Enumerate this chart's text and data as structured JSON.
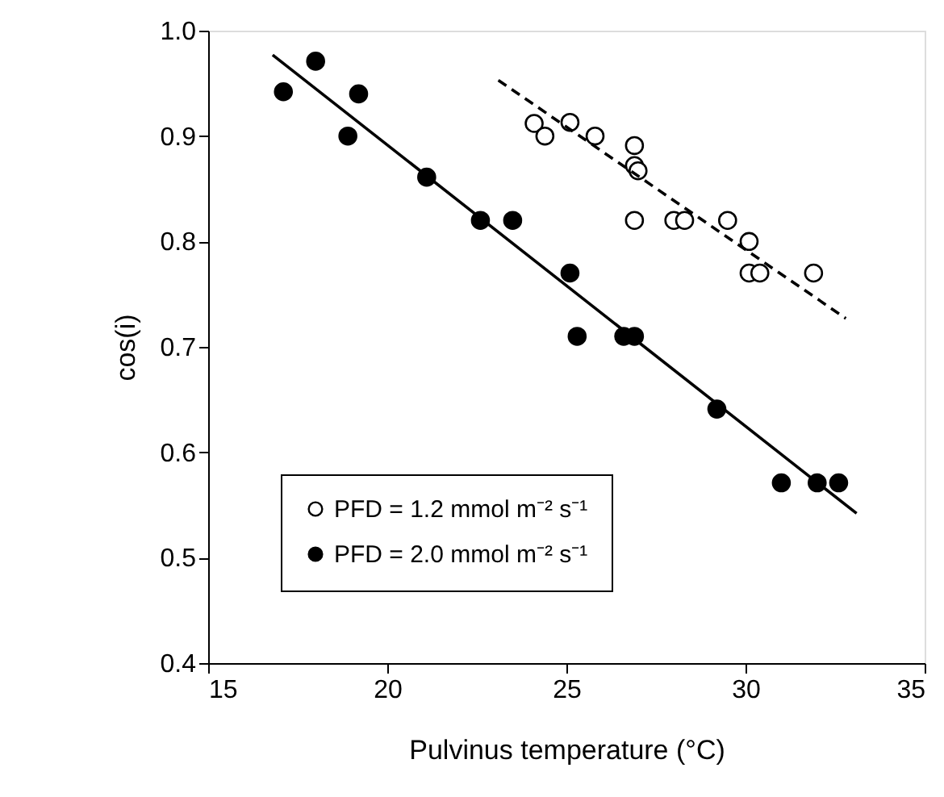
{
  "chart_data": {
    "type": "scatter",
    "xlabel": "Pulvinus temperature (°C)",
    "ylabel": "cos(i)",
    "xlim": [
      15,
      35
    ],
    "xticks": [
      15,
      20,
      25,
      30,
      35
    ],
    "ylim": [
      0.4,
      1.0
    ],
    "yticks": [
      0.4,
      0.5,
      0.6,
      0.7,
      0.8,
      0.9,
      {
        "value": 1,
        "label": "1.0"
      }
    ],
    "grid": false,
    "legend": "bottom left",
    "series": [
      {
        "name": "PFD = 1.2 mmol m⁻² s⁻¹",
        "color": "#ffffff",
        "marker": "circle",
        "x": [
          24.1,
          24.4,
          25.1,
          25.8,
          26.9,
          26.9,
          27.0,
          26.9,
          28.0,
          28.3,
          29.5,
          30.1,
          30.1,
          30.4,
          31.9
        ],
        "values": [
          0.912,
          0.9,
          0.913,
          0.9,
          0.891,
          0.872,
          0.867,
          0.82,
          0.82,
          0.82,
          0.82,
          0.8,
          0.77,
          0.77,
          0.77
        ]
      },
      {
        "name": "PFD = 2.0 mmol m⁻² s⁻¹",
        "color": "#000000",
        "marker": "circle",
        "x": [
          17.1,
          18.0,
          19.2,
          18.9,
          21.1,
          22.6,
          23.5,
          25.1,
          25.3,
          26.6,
          26.9,
          29.2,
          31.0,
          32.0,
          32.6
        ],
        "values": [
          0.942,
          0.971,
          0.94,
          0.9,
          0.861,
          0.82,
          0.82,
          0.77,
          0.71,
          0.71,
          0.71,
          0.641,
          0.571,
          0.571,
          0.571
        ]
      },
      {
        "type": "line",
        "line_style": "dashed",
        "marker": "none",
        "color": "#000000",
        "x": [
          23.1,
          32.8
        ],
        "values": [
          0.953,
          0.727
        ]
      },
      {
        "type": "line",
        "line_style": "solid",
        "marker": "none",
        "color": "#000000",
        "x": [
          16.8,
          33.1
        ],
        "values": [
          0.977,
          0.542
        ]
      }
    ]
  }
}
